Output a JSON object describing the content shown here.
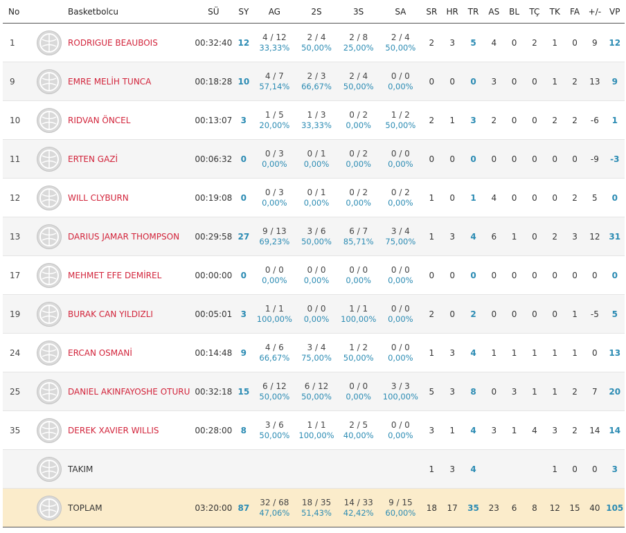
{
  "headers": {
    "no": "No",
    "name": "Basketbolcu",
    "time": "SÜ",
    "pts": "SY",
    "fg": "AG",
    "two": "2S",
    "three": "3S",
    "ft": "SA",
    "oreb": "SR",
    "dreb": "HR",
    "reb": "TR",
    "ast": "AS",
    "blk": "BL",
    "to": "TÇ",
    "stl": "TK",
    "pf": "FA",
    "pm": "+/-",
    "eff": "VP"
  },
  "players": [
    {
      "no": "1",
      "name": "RODRIGUE BEAUBOIS",
      "time": "00:32:40",
      "pts": "12",
      "fg": "4 / 12",
      "fg_pct": "33,33%",
      "two": "2 / 4",
      "two_pct": "50,00%",
      "three": "2 / 8",
      "three_pct": "25,00%",
      "ft": "2 / 4",
      "ft_pct": "50,00%",
      "oreb": "2",
      "dreb": "3",
      "reb": "5",
      "ast": "4",
      "blk": "0",
      "to": "2",
      "stl": "1",
      "pf": "0",
      "pm": "9",
      "eff": "12"
    },
    {
      "no": "9",
      "name": "EMRE MELİH TUNCA",
      "time": "00:18:28",
      "pts": "10",
      "fg": "4 / 7",
      "fg_pct": "57,14%",
      "two": "2 / 3",
      "two_pct": "66,67%",
      "three": "2 / 4",
      "three_pct": "50,00%",
      "ft": "0 / 0",
      "ft_pct": "0,00%",
      "oreb": "0",
      "dreb": "0",
      "reb": "0",
      "ast": "3",
      "blk": "0",
      "to": "0",
      "stl": "1",
      "pf": "2",
      "pm": "13",
      "eff": "9"
    },
    {
      "no": "10",
      "name": "RIDVAN ÖNCEL",
      "time": "00:13:07",
      "pts": "3",
      "fg": "1 / 5",
      "fg_pct": "20,00%",
      "two": "1 / 3",
      "two_pct": "33,33%",
      "three": "0 / 2",
      "three_pct": "0,00%",
      "ft": "1 / 2",
      "ft_pct": "50,00%",
      "oreb": "2",
      "dreb": "1",
      "reb": "3",
      "ast": "2",
      "blk": "0",
      "to": "0",
      "stl": "2",
      "pf": "2",
      "pm": "-6",
      "eff": "1"
    },
    {
      "no": "11",
      "name": "ERTEN GAZİ",
      "time": "00:06:32",
      "pts": "0",
      "fg": "0 / 3",
      "fg_pct": "0,00%",
      "two": "0 / 1",
      "two_pct": "0,00%",
      "three": "0 / 2",
      "three_pct": "0,00%",
      "ft": "0 / 0",
      "ft_pct": "0,00%",
      "oreb": "0",
      "dreb": "0",
      "reb": "0",
      "ast": "0",
      "blk": "0",
      "to": "0",
      "stl": "0",
      "pf": "0",
      "pm": "-9",
      "eff": "-3"
    },
    {
      "no": "12",
      "name": "WILL CLYBURN",
      "time": "00:19:08",
      "pts": "0",
      "fg": "0 / 3",
      "fg_pct": "0,00%",
      "two": "0 / 1",
      "two_pct": "0,00%",
      "three": "0 / 2",
      "three_pct": "0,00%",
      "ft": "0 / 2",
      "ft_pct": "0,00%",
      "oreb": "1",
      "dreb": "0",
      "reb": "1",
      "ast": "4",
      "blk": "0",
      "to": "0",
      "stl": "0",
      "pf": "2",
      "pm": "5",
      "eff": "0"
    },
    {
      "no": "13",
      "name": "DARIUS JAMAR THOMPSON",
      "time": "00:29:58",
      "pts": "27",
      "fg": "9 / 13",
      "fg_pct": "69,23%",
      "two": "3 / 6",
      "two_pct": "50,00%",
      "three": "6 / 7",
      "three_pct": "85,71%",
      "ft": "3 / 4",
      "ft_pct": "75,00%",
      "oreb": "1",
      "dreb": "3",
      "reb": "4",
      "ast": "6",
      "blk": "1",
      "to": "0",
      "stl": "2",
      "pf": "3",
      "pm": "12",
      "eff": "31"
    },
    {
      "no": "17",
      "name": "MEHMET EFE DEMİREL",
      "time": "00:00:00",
      "pts": "0",
      "fg": "0 / 0",
      "fg_pct": "0,00%",
      "two": "0 / 0",
      "two_pct": "0,00%",
      "three": "0 / 0",
      "three_pct": "0,00%",
      "ft": "0 / 0",
      "ft_pct": "0,00%",
      "oreb": "0",
      "dreb": "0",
      "reb": "0",
      "ast": "0",
      "blk": "0",
      "to": "0",
      "stl": "0",
      "pf": "0",
      "pm": "0",
      "eff": "0"
    },
    {
      "no": "19",
      "name": "BURAK CAN YILDIZLI",
      "time": "00:05:01",
      "pts": "3",
      "fg": "1 / 1",
      "fg_pct": "100,00%",
      "two": "0 / 0",
      "two_pct": "0,00%",
      "three": "1 / 1",
      "three_pct": "100,00%",
      "ft": "0 / 0",
      "ft_pct": "0,00%",
      "oreb": "2",
      "dreb": "0",
      "reb": "2",
      "ast": "0",
      "blk": "0",
      "to": "0",
      "stl": "0",
      "pf": "1",
      "pm": "-5",
      "eff": "5"
    },
    {
      "no": "24",
      "name": "ERCAN OSMANİ",
      "time": "00:14:48",
      "pts": "9",
      "fg": "4 / 6",
      "fg_pct": "66,67%",
      "two": "3 / 4",
      "two_pct": "75,00%",
      "three": "1 / 2",
      "three_pct": "50,00%",
      "ft": "0 / 0",
      "ft_pct": "0,00%",
      "oreb": "1",
      "dreb": "3",
      "reb": "4",
      "ast": "1",
      "blk": "1",
      "to": "1",
      "stl": "1",
      "pf": "1",
      "pm": "0",
      "eff": "13"
    },
    {
      "no": "25",
      "name": "DANIEL AKINFAYOSHE OTURU",
      "time": "00:32:18",
      "pts": "15",
      "fg": "6 / 12",
      "fg_pct": "50,00%",
      "two": "6 / 12",
      "two_pct": "50,00%",
      "three": "0 / 0",
      "three_pct": "0,00%",
      "ft": "3 / 3",
      "ft_pct": "100,00%",
      "oreb": "5",
      "dreb": "3",
      "reb": "8",
      "ast": "0",
      "blk": "3",
      "to": "1",
      "stl": "1",
      "pf": "2",
      "pm": "7",
      "eff": "20"
    },
    {
      "no": "35",
      "name": "DEREK XAVIER WILLIS",
      "time": "00:28:00",
      "pts": "8",
      "fg": "3 / 6",
      "fg_pct": "50,00%",
      "two": "1 / 1",
      "two_pct": "100,00%",
      "three": "2 / 5",
      "three_pct": "40,00%",
      "ft": "0 / 0",
      "ft_pct": "0,00%",
      "oreb": "3",
      "dreb": "1",
      "reb": "4",
      "ast": "3",
      "blk": "1",
      "to": "4",
      "stl": "3",
      "pf": "2",
      "pm": "14",
      "eff": "14"
    }
  ],
  "team": {
    "name": "TAKIM",
    "oreb": "1",
    "dreb": "3",
    "reb": "4",
    "stl": "1",
    "pf": "0",
    "pm": "0",
    "eff": "3"
  },
  "total": {
    "name": "TOPLAM",
    "time": "03:20:00",
    "pts": "87",
    "fg": "32 / 68",
    "fg_pct": "47,06%",
    "two": "18 / 35",
    "two_pct": "51,43%",
    "three": "14 / 33",
    "three_pct": "42,42%",
    "ft": "9 / 15",
    "ft_pct": "60,00%",
    "oreb": "18",
    "dreb": "17",
    "reb": "35",
    "ast": "23",
    "blk": "6",
    "to": "8",
    "stl": "12",
    "pf": "15",
    "pm": "40",
    "eff": "105"
  },
  "colors": {
    "accent_red": "#d2233a",
    "accent_blue": "#2b8bb3",
    "total_bg": "#fbeccb"
  },
  "icons": {
    "player_avatar": "basketball-icon"
  }
}
